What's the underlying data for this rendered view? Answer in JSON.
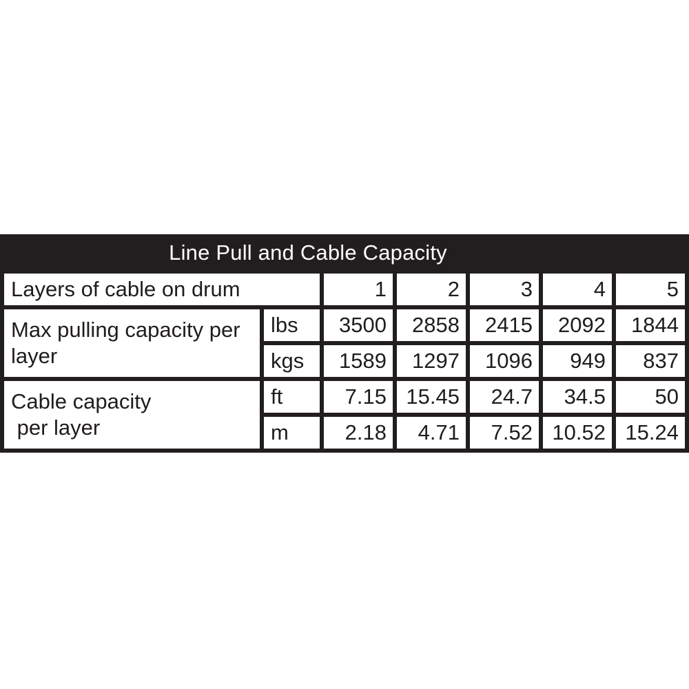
{
  "table": {
    "title": "Line Pull and Cable Capacity",
    "header": {
      "label": "Layers of cable on drum",
      "values": [
        "1",
        "2",
        "3",
        "4",
        "5"
      ]
    },
    "groups": [
      {
        "label": "Max pulling capacity per\nlayer",
        "rows": [
          {
            "unit": "lbs",
            "values": [
              "3500",
              "2858",
              "2415",
              "2092",
              "1844"
            ]
          },
          {
            "unit": "kgs",
            "values": [
              "1589",
              "1297",
              "1096",
              "949",
              "837"
            ]
          }
        ]
      },
      {
        "label": "Cable capacity\n per layer",
        "rows": [
          {
            "unit": "ft",
            "values": [
              "7.15",
              "15.45",
              "24.7",
              "34.5",
              "50"
            ]
          },
          {
            "unit": "m",
            "values": [
              "2.18",
              "4.71",
              "7.52",
              "10.52",
              "15.24"
            ]
          }
        ]
      }
    ]
  },
  "colors": {
    "table_background_black": "#221e1f",
    "cell_background_white": "#ffffff",
    "title_text_white": "#ffffff",
    "cell_text_black": "#201c1d"
  },
  "chart_data": {
    "type": "table",
    "title": "Line Pull and Cable Capacity",
    "columns": [
      "Layers of cable on drum",
      "1",
      "2",
      "3",
      "4",
      "5"
    ],
    "rows": [
      {
        "label": "Max pulling capacity per layer",
        "unit": "lbs",
        "values": [
          3500,
          2858,
          2415,
          2092,
          1844
        ]
      },
      {
        "label": "Max pulling capacity per layer",
        "unit": "kgs",
        "values": [
          1589,
          1297,
          1096,
          949,
          837
        ]
      },
      {
        "label": "Cable capacity per layer",
        "unit": "ft",
        "values": [
          7.15,
          15.45,
          24.7,
          34.5,
          50
        ]
      },
      {
        "label": "Cable capacity per layer",
        "unit": "m",
        "values": [
          2.18,
          4.71,
          7.52,
          10.52,
          15.24
        ]
      }
    ]
  }
}
